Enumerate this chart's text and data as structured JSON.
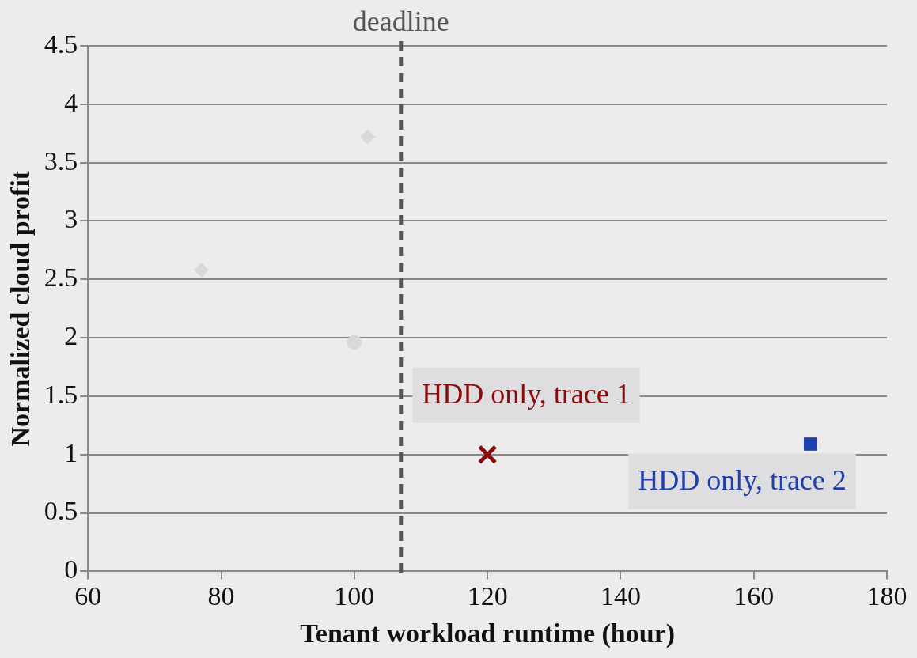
{
  "chart_data": {
    "type": "scatter",
    "xlabel": "Tenant workload runtime (hour)",
    "ylabel": "Normalized cloud profit",
    "series": [
      {
        "color": "#d9d9d9",
        "marker": "diamond",
        "x": [
          77,
          102
        ],
        "values": [
          2.58,
          3.72
        ]
      },
      {
        "color": "#d9d9d9",
        "marker": "circle",
        "x": [
          100
        ],
        "values": [
          1.96
        ]
      },
      {
        "name": "HDD only, trace 1",
        "color": "#8b0a0a",
        "marker": "cross",
        "x": [
          120
        ],
        "values": [
          1.0
        ]
      },
      {
        "name": "HDD only, trace 2",
        "color": "#1f3fb0",
        "marker": "square",
        "x": [
          168.5
        ],
        "values": [
          1.09
        ]
      }
    ],
    "xlim": [
      60,
      180
    ],
    "xticks": [
      60,
      80,
      100,
      120,
      140,
      160,
      180
    ],
    "ylim": [
      0,
      4.5
    ],
    "yticks": [
      0,
      0.5,
      1,
      1.5,
      2,
      2.5,
      3,
      3.5,
      4,
      4.5
    ],
    "grid": "y",
    "legend": false,
    "ref_lines": [
      {
        "axis": "x",
        "value": 107,
        "label": "deadline",
        "color": "#555555",
        "line_style": "dashed"
      }
    ]
  }
}
